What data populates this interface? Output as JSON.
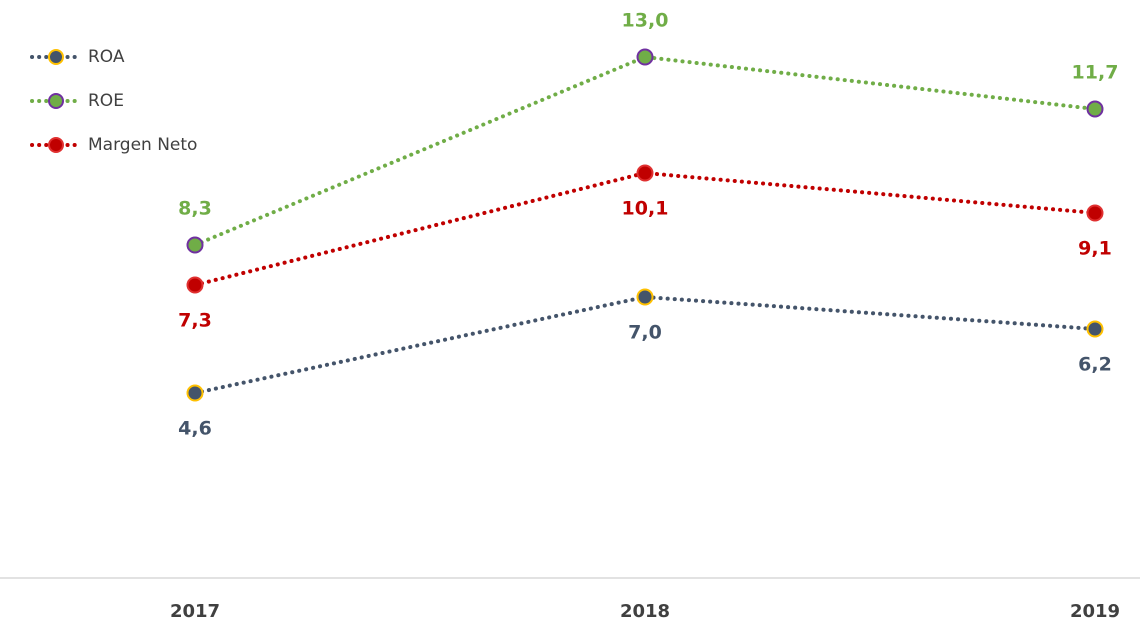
{
  "chart_data": {
    "type": "line",
    "categories": [
      "2017",
      "2018",
      "2019"
    ],
    "series": [
      {
        "name": "ROA",
        "color": "#44546a",
        "marker_edge": "#ffc000",
        "values": [
          4.6,
          7.0,
          6.2
        ],
        "value_labels": [
          "4,6",
          "7,0",
          "6,2"
        ]
      },
      {
        "name": "ROE",
        "color": "#70ad47",
        "marker_edge": "#7030a0",
        "values": [
          8.3,
          13.0,
          11.7
        ],
        "value_labels": [
          "8,3",
          "13,0",
          "11,7"
        ]
      },
      {
        "name": "Margen Neto",
        "color": "#c00000",
        "marker_edge": "#e03030",
        "values": [
          7.3,
          10.1,
          9.1
        ],
        "value_labels": [
          "7,3",
          "10,1",
          "9,1"
        ]
      }
    ],
    "ylim": [
      0,
      14
    ],
    "legend": "upper left"
  }
}
